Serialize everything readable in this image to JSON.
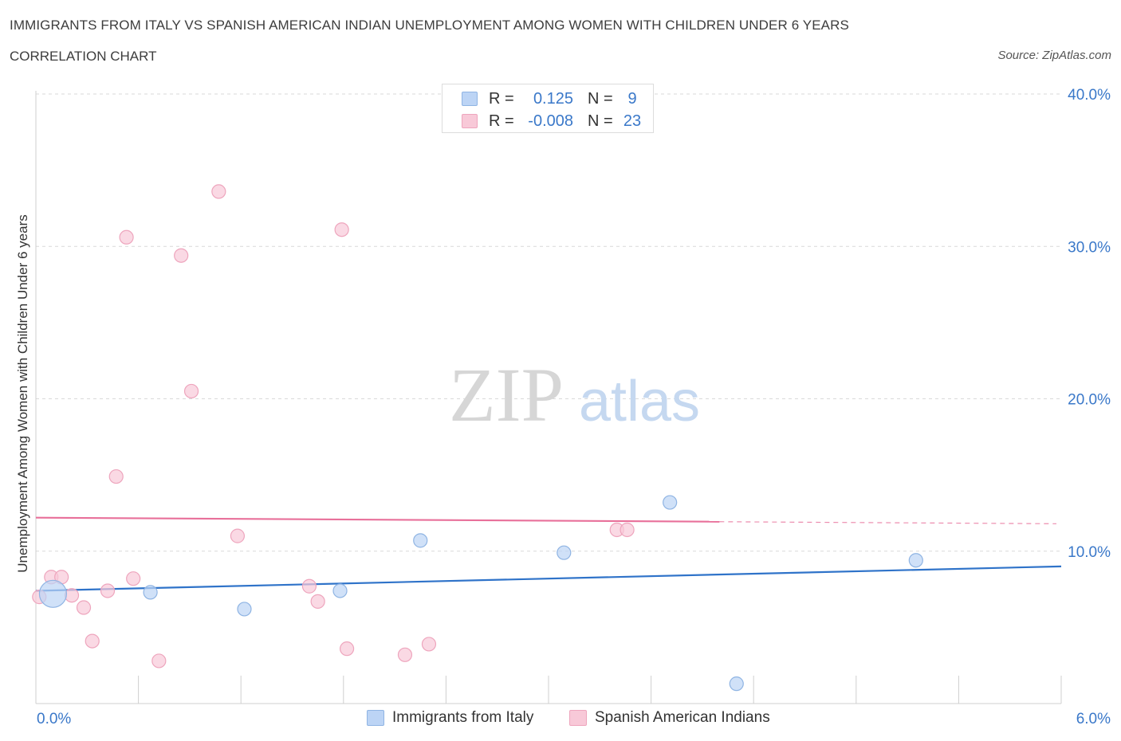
{
  "title": "IMMIGRANTS FROM ITALY VS SPANISH AMERICAN INDIAN UNEMPLOYMENT AMONG WOMEN WITH CHILDREN UNDER 6 YEARS",
  "subtitle": "CORRELATION CHART",
  "source": "Source: ZipAtlas.com",
  "watermark": {
    "zip": "ZIP",
    "atlas": "atlas"
  },
  "colors": {
    "blue_fill": "#bcd4f5",
    "blue_stroke": "#8fb4e3",
    "blue_line": "#2f73c9",
    "pink_fill": "#f8c9d8",
    "pink_stroke": "#eea5bd",
    "pink_line": "#e8709a",
    "axis_label": "#3a78c9",
    "grid": "#d9d9d9"
  },
  "legend": {
    "rows": [
      {
        "r_label": "R =",
        "r_value": "0.125",
        "n_label": "N =",
        "n_value": "9"
      },
      {
        "r_label": "R =",
        "r_value": "-0.008",
        "n_label": "N =",
        "n_value": "23"
      }
    ]
  },
  "chart_data": {
    "type": "scatter",
    "xlabel": "",
    "ylabel": "Unemployment Among Women with Children Under 6 years",
    "xlim": [
      0,
      6
    ],
    "ylim": [
      0,
      40
    ],
    "x_tick_labels": [
      "0.0%",
      "6.0%"
    ],
    "y_ticks": [
      10,
      20,
      30,
      40
    ],
    "y_tick_labels": [
      "10.0%",
      "20.0%",
      "30.0%",
      "40.0%"
    ],
    "grid": true,
    "legend_position": "bottom-center",
    "series": [
      {
        "name": "Immigrants from Italy",
        "color": "blue",
        "points": [
          {
            "x": 0.1,
            "y": 7.2,
            "size": "large"
          },
          {
            "x": 0.67,
            "y": 7.3
          },
          {
            "x": 1.22,
            "y": 6.2
          },
          {
            "x": 1.78,
            "y": 7.4
          },
          {
            "x": 2.25,
            "y": 10.7
          },
          {
            "x": 3.09,
            "y": 9.9
          },
          {
            "x": 3.71,
            "y": 13.2
          },
          {
            "x": 4.1,
            "y": 1.3
          },
          {
            "x": 5.15,
            "y": 9.4
          }
        ],
        "trend": {
          "x0": 0,
          "y0": 7.4,
          "x1": 6,
          "y1": 9.0,
          "dashed_from": null
        }
      },
      {
        "name": "Spanish American Indians",
        "color": "pink",
        "points": [
          {
            "x": 0.02,
            "y": 7.0
          },
          {
            "x": 0.09,
            "y": 8.3
          },
          {
            "x": 0.15,
            "y": 8.3
          },
          {
            "x": 0.21,
            "y": 7.1
          },
          {
            "x": 0.28,
            "y": 6.3
          },
          {
            "x": 0.33,
            "y": 4.1
          },
          {
            "x": 0.42,
            "y": 7.4
          },
          {
            "x": 0.47,
            "y": 14.9
          },
          {
            "x": 0.53,
            "y": 30.6
          },
          {
            "x": 0.57,
            "y": 8.2
          },
          {
            "x": 0.72,
            "y": 2.8
          },
          {
            "x": 0.85,
            "y": 29.4
          },
          {
            "x": 0.91,
            "y": 20.5
          },
          {
            "x": 1.07,
            "y": 33.6
          },
          {
            "x": 1.18,
            "y": 11.0
          },
          {
            "x": 1.6,
            "y": 7.7
          },
          {
            "x": 1.65,
            "y": 6.7
          },
          {
            "x": 1.79,
            "y": 31.1
          },
          {
            "x": 1.82,
            "y": 3.6
          },
          {
            "x": 2.16,
            "y": 3.2
          },
          {
            "x": 2.3,
            "y": 3.9
          },
          {
            "x": 3.4,
            "y": 11.4
          },
          {
            "x": 3.46,
            "y": 11.4
          }
        ],
        "trend": {
          "x0": 0,
          "y0": 12.2,
          "x1": 6,
          "y1": 11.8,
          "dashed_from": 4.0
        }
      }
    ]
  }
}
